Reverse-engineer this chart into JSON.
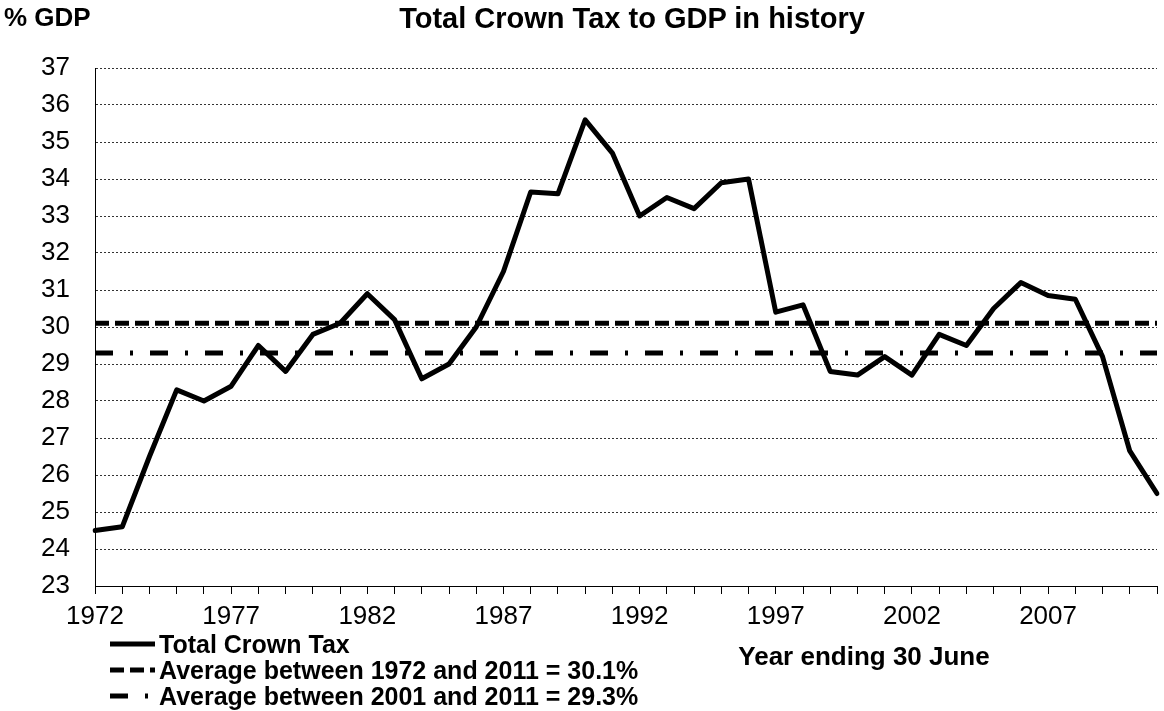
{
  "chart_data": {
    "type": "line",
    "title": "Total Crown Tax to GDP in history",
    "ylabel": "% GDP",
    "xlabel": "Year ending 30 June",
    "categories": [
      "1972",
      null,
      null,
      null,
      null,
      "1977",
      null,
      null,
      null,
      null,
      "1982",
      null,
      null,
      null,
      null,
      "1987",
      null,
      null,
      null,
      null,
      "1992",
      null,
      null,
      null,
      null,
      "1997",
      null,
      null,
      null,
      null,
      "2002",
      null,
      null,
      null,
      null,
      "2007",
      null,
      null,
      null,
      null
    ],
    "series": [
      {
        "name": "Total Crown Tax",
        "color": "#000000",
        "values": [
          24.5,
          24.6,
          26.5,
          28.3,
          28.0,
          28.4,
          29.5,
          28.8,
          29.8,
          30.1,
          30.9,
          30.2,
          28.6,
          29.0,
          30.0,
          31.5,
          33.65,
          33.6,
          35.6,
          34.7,
          33.0,
          33.5,
          33.2,
          33.9,
          34.0,
          30.4,
          30.6,
          28.8,
          28.7,
          29.2,
          28.7,
          29.8,
          29.5,
          30.5,
          31.2,
          30.85,
          30.75,
          29.2,
          26.65,
          25.5
        ]
      }
    ],
    "ref_lines": [
      {
        "axis": "y",
        "value": 30.1,
        "label": "Average between 1972 and 2011 = 30.1%",
        "color": "#000000",
        "line_style": "dashed"
      },
      {
        "axis": "y",
        "value": 29.3,
        "label": "Average between 2001 and 2011 = 29.3%",
        "color": "#000000",
        "line_style": "dashdot"
      }
    ],
    "ylim": [
      23,
      37
    ],
    "yticks": [
      23,
      24,
      25,
      26,
      27,
      28,
      29,
      30,
      31,
      32,
      33,
      34,
      35,
      36,
      37
    ],
    "grid": "y",
    "legend": "bottom left"
  }
}
